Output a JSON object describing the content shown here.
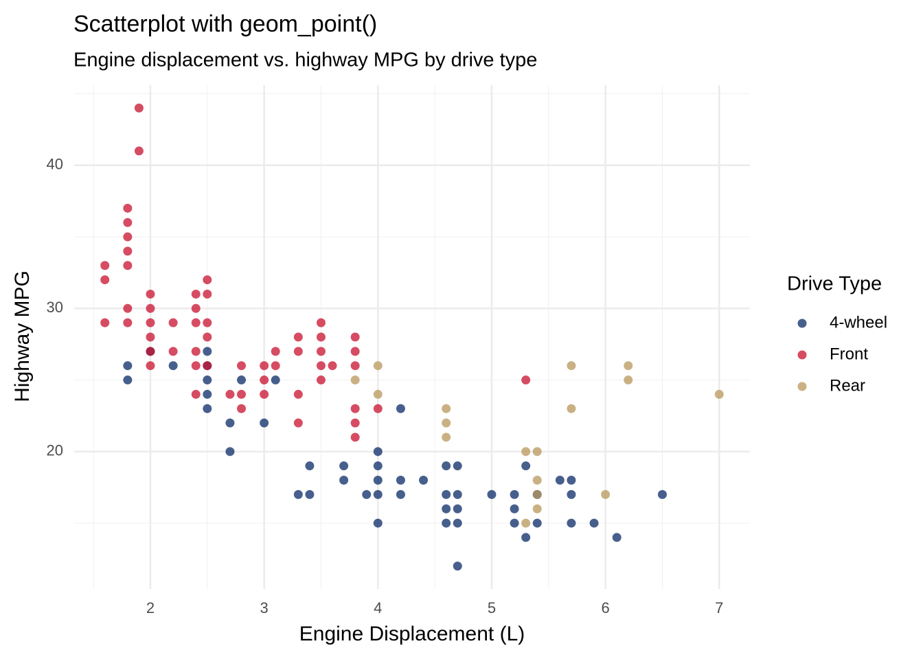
{
  "chart_data": {
    "type": "scatter",
    "title": "Scatterplot with geom_point()",
    "subtitle": "Engine displacement vs. highway MPG by drive type",
    "x_label": "Engine Displacement (L)",
    "y_label": "Highway MPG",
    "legend_title": "Drive Type",
    "legend_position": "right",
    "grid": true,
    "xlim": [
      1.33,
      7.27
    ],
    "xticks": [
      2,
      3,
      4,
      5,
      6,
      7
    ],
    "ylim": [
      10.4,
      45.6
    ],
    "yticks": [
      20,
      30,
      40
    ],
    "series": [
      {
        "name": "4-wheel",
        "color": "#0a2a66",
        "x": [
          1.8,
          1.8,
          2.0,
          2.2,
          2.5,
          2.5,
          2.5,
          2.5,
          2.5,
          2.7,
          2.7,
          2.8,
          3.0,
          3.1,
          3.3,
          3.4,
          3.4,
          3.7,
          3.7,
          3.9,
          4.0,
          4.0,
          4.0,
          4.0,
          4.0,
          4.2,
          4.2,
          4.2,
          4.4,
          4.6,
          4.6,
          4.6,
          4.6,
          4.7,
          4.7,
          4.7,
          4.7,
          4.7,
          5.0,
          5.2,
          5.2,
          5.2,
          5.3,
          5.3,
          5.4,
          5.4,
          5.6,
          5.7,
          5.7,
          5.7,
          5.9,
          6.1,
          6.5
        ],
        "values": [
          26,
          25,
          27,
          26,
          27,
          26,
          25,
          24,
          23,
          22,
          20,
          25,
          22,
          25,
          17,
          19,
          17,
          19,
          18,
          17,
          20,
          19,
          18,
          17,
          15,
          23,
          18,
          17,
          18,
          19,
          17,
          16,
          15,
          19,
          17,
          16,
          15,
          12,
          17,
          17,
          16,
          15,
          19,
          14,
          17,
          15,
          18,
          18,
          17,
          15,
          15,
          14,
          17
        ]
      },
      {
        "name": "Front",
        "color": "#c8102e",
        "x": [
          1.6,
          1.6,
          1.6,
          1.8,
          1.8,
          1.8,
          1.8,
          1.8,
          1.8,
          1.8,
          1.9,
          1.9,
          2.0,
          2.0,
          2.0,
          2.0,
          2.0,
          2.0,
          2.2,
          2.2,
          2.4,
          2.4,
          2.4,
          2.4,
          2.4,
          2.4,
          2.5,
          2.5,
          2.5,
          2.5,
          2.5,
          2.7,
          2.8,
          2.8,
          2.8,
          3.0,
          3.0,
          3.0,
          3.1,
          3.1,
          3.3,
          3.3,
          3.3,
          3.3,
          3.5,
          3.5,
          3.5,
          3.5,
          3.5,
          3.6,
          3.8,
          3.8,
          3.8,
          3.8,
          3.8,
          3.8,
          4.0,
          5.3
        ],
        "values": [
          33,
          32,
          29,
          37,
          36,
          35,
          34,
          33,
          30,
          29,
          44,
          41,
          31,
          30,
          29,
          28,
          27,
          26,
          29,
          27,
          31,
          30,
          29,
          27,
          26,
          24,
          32,
          31,
          29,
          28,
          26,
          24,
          26,
          24,
          23,
          26,
          25,
          24,
          27,
          26,
          28,
          27,
          24,
          22,
          29,
          28,
          27,
          26,
          25,
          26,
          28,
          27,
          26,
          23,
          22,
          21,
          23,
          25
        ]
      },
      {
        "name": "Rear",
        "color": "#b8975a",
        "x": [
          3.8,
          4.0,
          4.0,
          4.6,
          4.6,
          4.6,
          5.3,
          5.3,
          5.4,
          5.4,
          5.4,
          5.4,
          5.7,
          5.7,
          6.0,
          6.2,
          6.2,
          7.0
        ],
        "values": [
          25,
          26,
          24,
          23,
          22,
          21,
          20,
          15,
          20,
          18,
          17,
          16,
          26,
          23,
          17,
          26,
          25,
          24
        ]
      }
    ]
  }
}
